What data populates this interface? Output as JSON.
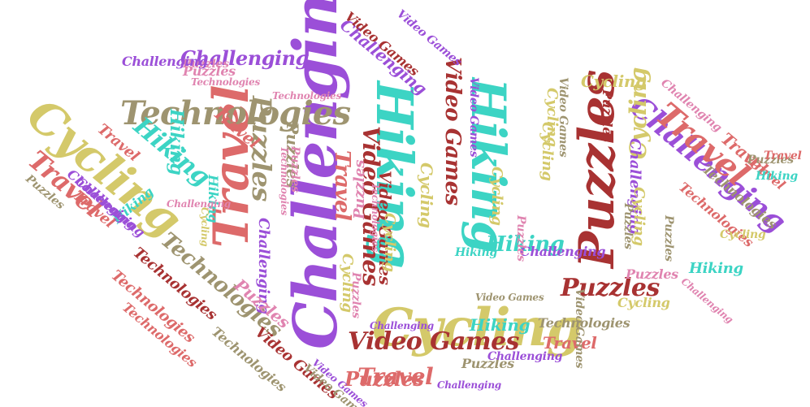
{
  "palette": {
    "purple": "#9b4fd8",
    "gold": "#d4c96a",
    "teal": "#3cd4c4",
    "olive": "#9e9470",
    "coral": "#dd6a6a",
    "maroon": "#a83232",
    "pink": "#e084b0"
  },
  "words": [
    {
      "text": "Challenging",
      "color": "purple"
    },
    {
      "text": "Cycling",
      "color": "gold"
    },
    {
      "text": "Hiking",
      "color": "teal"
    },
    {
      "text": "Hiking",
      "color": "teal"
    },
    {
      "text": "Puzzles",
      "color": "maroon"
    },
    {
      "text": "Travel",
      "color": "coral"
    },
    {
      "text": "Cycling",
      "color": "gold"
    },
    {
      "text": "Technologies",
      "color": "olive"
    },
    {
      "text": "Challenging",
      "color": "purple"
    },
    {
      "text": "Travel",
      "color": "coral"
    },
    {
      "text": "Puzzles",
      "color": "olive"
    },
    {
      "text": "Challenging",
      "color": "purple"
    },
    {
      "text": "Hiking",
      "color": "teal"
    },
    {
      "text": "Video Games",
      "color": "maroon"
    },
    {
      "text": "Video Games",
      "color": "maroon"
    },
    {
      "text": "Puzzles",
      "color": "maroon"
    },
    {
      "text": "Technologies",
      "color": "olive"
    },
    {
      "text": "Travel",
      "color": "coral"
    },
    {
      "text": "Travel",
      "color": "coral"
    },
    {
      "text": "Travel",
      "color": "coral"
    },
    {
      "text": "Video Games",
      "color": "maroon"
    },
    {
      "text": "Challenging",
      "color": "purple"
    },
    {
      "text": "Hiking",
      "color": "teal"
    },
    {
      "text": "Cycling",
      "color": "gold"
    },
    {
      "text": "Travel",
      "color": "coral"
    },
    {
      "text": "Puzzles",
      "color": "olive"
    },
    {
      "text": "Technologies",
      "color": "olive"
    },
    {
      "text": "Challenging",
      "color": "purple"
    },
    {
      "text": "Cycling",
      "color": "gold"
    },
    {
      "text": "Hiking",
      "color": "teal"
    },
    {
      "text": "Technologies",
      "color": "maroon"
    },
    {
      "text": "Puzzles",
      "color": "pink"
    },
    {
      "text": "Hiking",
      "color": "teal"
    },
    {
      "text": "Hiking",
      "color": "teal"
    },
    {
      "text": "Travel",
      "color": "coral"
    },
    {
      "text": "Travel",
      "color": "coral"
    },
    {
      "text": "Puzzles",
      "color": "pink"
    },
    {
      "text": "Cycling",
      "color": "gold"
    },
    {
      "text": "Video Games",
      "color": "maroon"
    },
    {
      "text": "Challenging",
      "color": "purple"
    },
    {
      "text": "Puzzles",
      "color": "coral"
    },
    {
      "text": "Travel",
      "color": "coral"
    },
    {
      "text": "Technologies",
      "color": "coral"
    },
    {
      "text": "Puzzles",
      "color": "pink"
    },
    {
      "text": "Puzzles",
      "color": "olive"
    },
    {
      "text": "Hiking",
      "color": "teal"
    },
    {
      "text": "Challenging",
      "color": "purple"
    },
    {
      "text": "Technologies",
      "color": "olive"
    },
    {
      "text": "Video Games",
      "color": "maroon"
    },
    {
      "text": "Cycling",
      "color": "gold"
    },
    {
      "text": "Cycling",
      "color": "gold"
    },
    {
      "text": "Travel",
      "color": "coral"
    },
    {
      "text": "Cycling",
      "color": "gold"
    },
    {
      "text": "Puzzles",
      "color": "olive"
    },
    {
      "text": "Technologies",
      "color": "coral"
    },
    {
      "text": "Technologies",
      "color": "coral"
    },
    {
      "text": "Hiking",
      "color": "teal"
    },
    {
      "text": "Challenging",
      "color": "purple"
    },
    {
      "text": "Puzzles",
      "color": "pink"
    },
    {
      "text": "Cycling",
      "color": "gold"
    },
    {
      "text": "Video Games",
      "color": "olive"
    },
    {
      "text": "Travel",
      "color": "coral"
    },
    {
      "text": "Cycling",
      "color": "gold"
    },
    {
      "text": "Puzzles",
      "color": "pink"
    },
    {
      "text": "Challenging",
      "color": "purple"
    },
    {
      "text": "Technologies",
      "color": "olive"
    },
    {
      "text": "Puzzles",
      "color": "olive"
    },
    {
      "text": "Hiking",
      "color": "teal"
    },
    {
      "text": "Challenging",
      "color": "purple"
    },
    {
      "text": "Challenging",
      "color": "pink"
    },
    {
      "text": "Video Games",
      "color": "purple"
    },
    {
      "text": "Puzzles",
      "color": "olive"
    },
    {
      "text": "Video Games",
      "color": "olive"
    },
    {
      "text": "Cycling",
      "color": "gold"
    },
    {
      "text": "Video Games",
      "color": "maroon"
    },
    {
      "text": "Challenging",
      "color": "purple"
    },
    {
      "text": "Technologies",
      "color": "pink"
    },
    {
      "text": "Cycling",
      "color": "gold"
    },
    {
      "text": "Puzzles",
      "color": "olive"
    },
    {
      "text": "Hiking",
      "color": "teal"
    },
    {
      "text": "Cycling",
      "color": "gold"
    },
    {
      "text": "Travel",
      "color": "coral"
    },
    {
      "text": "Challenging",
      "color": "purple"
    },
    {
      "text": "Video Games",
      "color": "purple"
    },
    {
      "text": "Puzzles",
      "color": "maroon"
    },
    {
      "text": "Puzzles",
      "color": "pink"
    },
    {
      "text": "Technologies",
      "color": "pink"
    },
    {
      "text": "Technologies",
      "color": "pink"
    },
    {
      "text": "Technologies",
      "color": "pink"
    },
    {
      "text": "Cycling",
      "color": "gold"
    },
    {
      "text": "Puzzles",
      "color": "pink"
    },
    {
      "text": "Challenging",
      "color": "pink"
    },
    {
      "text": "Puzzles",
      "color": "pink"
    },
    {
      "text": "Video Games",
      "color": "olive"
    },
    {
      "text": "Challenging",
      "color": "purple"
    },
    {
      "text": "Video Games",
      "color": "purple"
    },
    {
      "text": "Video Games",
      "color": "olive"
    },
    {
      "text": "Challenging",
      "color": "pink"
    }
  ]
}
